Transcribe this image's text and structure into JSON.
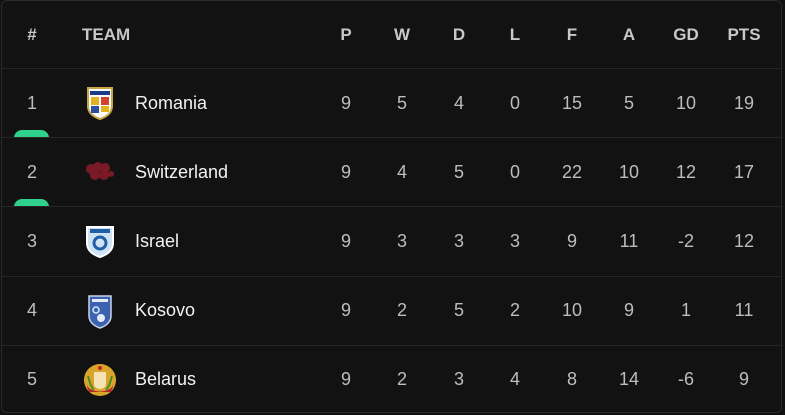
{
  "header": {
    "rank": "#",
    "team": "TEAM",
    "p": "P",
    "w": "W",
    "d": "D",
    "l": "L",
    "f": "F",
    "a": "A",
    "gd": "GD",
    "pts": "PTS"
  },
  "qualification_color": "#2fd18c",
  "rows": [
    {
      "rank": "1",
      "team": "Romania",
      "icon": "romania-crest-icon",
      "logo_text": "ROMANIA",
      "p": "9",
      "w": "5",
      "d": "4",
      "l": "0",
      "f": "15",
      "a": "5",
      "gd": "10",
      "pts": "19",
      "qualified": true
    },
    {
      "rank": "2",
      "team": "Switzerland",
      "icon": "switzerland-crest-icon",
      "p": "9",
      "w": "4",
      "d": "5",
      "l": "0",
      "f": "22",
      "a": "10",
      "gd": "12",
      "pts": "17",
      "qualified": true
    },
    {
      "rank": "3",
      "team": "Israel",
      "icon": "israel-crest-icon",
      "logo_text": "ISRAEL",
      "p": "9",
      "w": "3",
      "d": "3",
      "l": "3",
      "f": "9",
      "a": "11",
      "gd": "-2",
      "pts": "12",
      "qualified": false
    },
    {
      "rank": "4",
      "team": "Kosovo",
      "icon": "kosovo-crest-icon",
      "logo_text": "FFK",
      "p": "9",
      "w": "2",
      "d": "5",
      "l": "2",
      "f": "10",
      "a": "9",
      "gd": "1",
      "pts": "11",
      "qualified": false
    },
    {
      "rank": "5",
      "team": "Belarus",
      "icon": "belarus-emblem-icon",
      "p": "9",
      "w": "2",
      "d": "3",
      "l": "4",
      "f": "8",
      "a": "14",
      "gd": "-6",
      "pts": "9",
      "qualified": false
    }
  ]
}
